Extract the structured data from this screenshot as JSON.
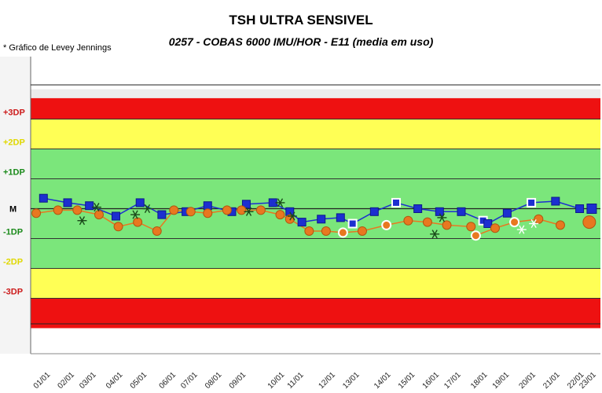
{
  "header": {
    "title": "TSH ULTRA SENSIVEL",
    "subtitle": "0257 - COBAS 6000 IMU/HOR - E11 (media em uso)",
    "note": "* Gráfico de Levey Jennings"
  },
  "chart_data": {
    "type": "line",
    "title": "TSH ULTRA SENSIVEL",
    "subtitle": "0257 - COBAS 6000 IMU/HOR - E11 (media em uso)",
    "ylim": [
      -4,
      4
    ],
    "y_ticks": [
      {
        "label": "+3DP",
        "value": 3,
        "color": "#cc1a1a"
      },
      {
        "label": "+2DP",
        "value": 2,
        "color": "#e0d800"
      },
      {
        "label": "+1DP",
        "value": 1,
        "color": "#1a8a1a"
      },
      {
        "label": "M",
        "value": 0,
        "color": "#000000"
      },
      {
        "label": "-1DP",
        "value": -1,
        "color": "#1a8a1a"
      },
      {
        "label": "-2DP",
        "value": -2,
        "color": "#e0d800"
      },
      {
        "label": "-3DP",
        "value": -3,
        "color": "#cc1a1a"
      }
    ],
    "zones": [
      {
        "from": 3.7,
        "to": 4,
        "color": "#ececec"
      },
      {
        "from": 3,
        "to": 3.7,
        "color": "#ee1111"
      },
      {
        "from": 2,
        "to": 3,
        "color": "#ffff55"
      },
      {
        "from": -2,
        "to": 2,
        "color": "#7be67b"
      },
      {
        "from": -3,
        "to": -2,
        "color": "#ffff55"
      },
      {
        "from": -4,
        "to": -3,
        "color": "#ee1111"
      }
    ],
    "x_range": [
      0,
      23.2
    ],
    "categories": [
      "01/01",
      "02/01",
      "03/01",
      "04/01",
      "05/01",
      "06/01",
      "07/01",
      "08/01",
      "09/01",
      "10/01",
      "11/01",
      "12/01",
      "13/01",
      "14/01",
      "15/01",
      "16/01",
      "17/01",
      "18/01",
      "19/01",
      "20/01",
      "21/01",
      "22/01",
      "23/01"
    ],
    "category_x": [
      0.4,
      1.4,
      2.3,
      3.4,
      4.4,
      5.6,
      6.5,
      7.5,
      8.5,
      10.1,
      10.9,
      12.2,
      13.2,
      14.5,
      15.5,
      16.5,
      17.4,
      18.5,
      19.4,
      20.5,
      21.5,
      22.5,
      23.0
    ],
    "series": [
      {
        "name": "",
        "color": "#1c2fd0",
        "marker": "square",
        "points": [
          {
            "x": 0.4,
            "y": 0.35
          },
          {
            "x": 1.4,
            "y": 0.2
          },
          {
            "x": 2.3,
            "y": 0.1
          },
          {
            "x": 3.4,
            "y": -0.25
          },
          {
            "x": 4.4,
            "y": 0.2
          },
          {
            "x": 5.3,
            "y": -0.2
          },
          {
            "x": 6.3,
            "y": -0.1
          },
          {
            "x": 7.2,
            "y": 0.1
          },
          {
            "x": 8.2,
            "y": -0.1
          },
          {
            "x": 8.8,
            "y": 0.15
          },
          {
            "x": 9.9,
            "y": 0.2
          },
          {
            "x": 10.6,
            "y": -0.1
          },
          {
            "x": 11.1,
            "y": -0.45
          },
          {
            "x": 11.9,
            "y": -0.35
          },
          {
            "x": 12.7,
            "y": -0.3
          },
          {
            "x": 13.2,
            "y": -0.5,
            "hollow": true
          },
          {
            "x": 14.1,
            "y": -0.1
          },
          {
            "x": 15.0,
            "y": 0.2,
            "hollow": true
          },
          {
            "x": 15.9,
            "y": 0.0
          },
          {
            "x": 16.8,
            "y": -0.1
          },
          {
            "x": 17.7,
            "y": -0.1
          },
          {
            "x": 18.6,
            "y": -0.4,
            "hollow": true
          },
          {
            "x": 18.8,
            "y": -0.5
          },
          {
            "x": 19.6,
            "y": -0.15
          },
          {
            "x": 20.6,
            "y": 0.2,
            "hollow": true
          },
          {
            "x": 21.6,
            "y": 0.25
          },
          {
            "x": 22.6,
            "y": 0.0
          }
        ]
      },
      {
        "name": "",
        "color": "#e87820",
        "marker": "circle",
        "points": [
          {
            "x": 0.1,
            "y": -0.15
          },
          {
            "x": 1.0,
            "y": -0.05
          },
          {
            "x": 1.8,
            "y": -0.05
          },
          {
            "x": 2.7,
            "y": -0.2
          },
          {
            "x": 3.5,
            "y": -0.6
          },
          {
            "x": 4.3,
            "y": -0.45
          },
          {
            "x": 5.1,
            "y": -0.75
          },
          {
            "x": 5.8,
            "y": -0.05
          },
          {
            "x": 6.5,
            "y": -0.1
          },
          {
            "x": 7.2,
            "y": -0.15
          },
          {
            "x": 8.0,
            "y": -0.05
          },
          {
            "x": 8.6,
            "y": -0.05
          },
          {
            "x": 9.4,
            "y": -0.05
          },
          {
            "x": 10.2,
            "y": -0.2
          },
          {
            "x": 10.6,
            "y": -0.35
          },
          {
            "x": 11.4,
            "y": -0.75
          },
          {
            "x": 12.1,
            "y": -0.75
          },
          {
            "x": 12.8,
            "y": -0.8,
            "hollow": true
          },
          {
            "x": 13.6,
            "y": -0.75
          },
          {
            "x": 14.6,
            "y": -0.55,
            "hollow": true
          },
          {
            "x": 15.5,
            "y": -0.4
          },
          {
            "x": 16.3,
            "y": -0.45
          },
          {
            "x": 17.1,
            "y": -0.55
          },
          {
            "x": 18.1,
            "y": -0.6
          },
          {
            "x": 18.3,
            "y": -0.9,
            "hollow": true
          },
          {
            "x": 19.1,
            "y": -0.65
          },
          {
            "x": 19.9,
            "y": -0.45,
            "hollow": true
          },
          {
            "x": 20.9,
            "y": -0.35
          },
          {
            "x": 21.8,
            "y": -0.55
          }
        ]
      }
    ],
    "stars": [
      {
        "x": 2.0,
        "y": -0.4,
        "color": "#1a4a1a"
      },
      {
        "x": 2.6,
        "y": 0.05,
        "color": "#1a4a1a"
      },
      {
        "x": 4.2,
        "y": -0.2,
        "color": "#1a4a1a"
      },
      {
        "x": 4.7,
        "y": 0.0,
        "color": "#1a4a1a"
      },
      {
        "x": 8.9,
        "y": -0.1,
        "color": "#1a4a1a"
      },
      {
        "x": 10.2,
        "y": 0.2,
        "color": "#1a4a1a"
      },
      {
        "x": 10.7,
        "y": -0.25,
        "color": "#1a4a1a"
      },
      {
        "x": 16.6,
        "y": -0.85,
        "color": "#1a4a1a"
      },
      {
        "x": 16.9,
        "y": -0.3,
        "color": "#1a4a1a"
      },
      {
        "x": 20.2,
        "y": -0.7,
        "color": "#ffffff"
      },
      {
        "x": 20.7,
        "y": -0.5,
        "color": "#ffffff"
      }
    ],
    "grid": false,
    "legend": "none"
  }
}
